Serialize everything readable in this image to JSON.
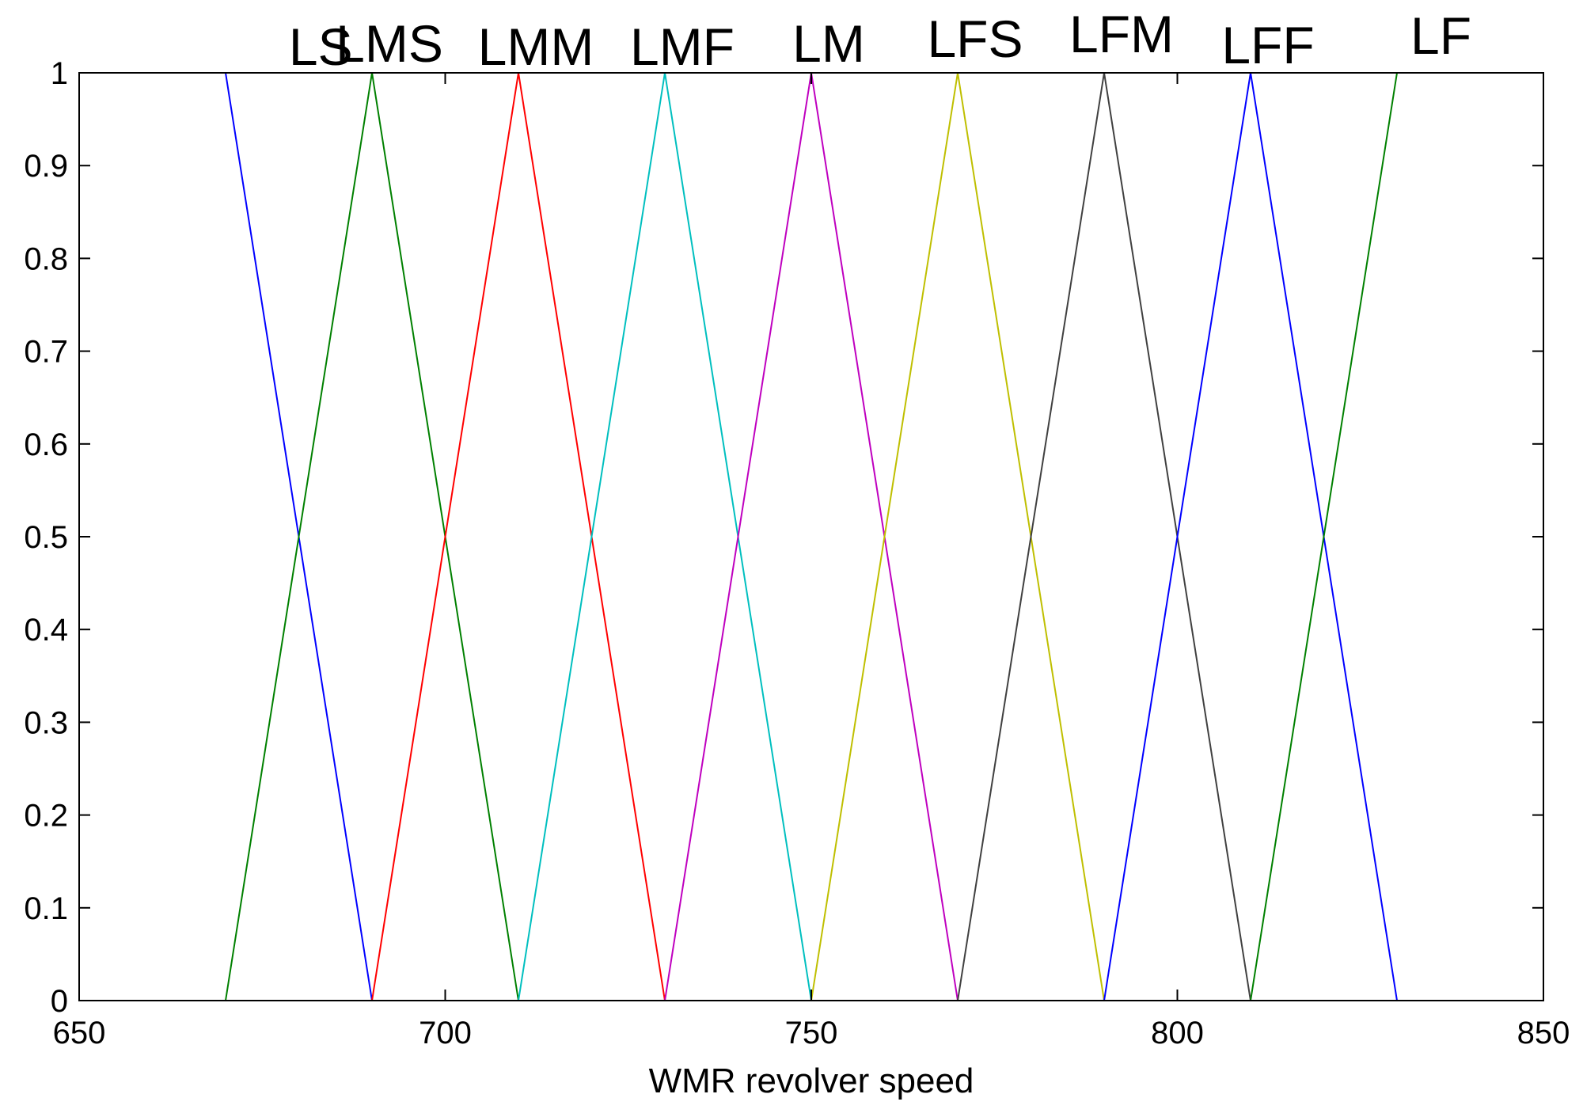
{
  "chart_data": {
    "type": "line",
    "title": "",
    "xlabel": "WMR revolver speed",
    "ylabel": "",
    "xlim": [
      650,
      850
    ],
    "ylim": [
      0,
      1
    ],
    "xticks": [
      650,
      700,
      750,
      800,
      850
    ],
    "xtick_labels": [
      "650",
      "700",
      "750",
      "800",
      "850"
    ],
    "yticks": [
      0,
      0.1,
      0.2,
      0.3,
      0.4,
      0.5,
      0.6,
      0.7,
      0.8,
      0.9,
      1
    ],
    "ytick_labels": [
      "0",
      "0.1",
      "0.2",
      "0.3",
      "0.4",
      "0.5",
      "0.6",
      "0.7",
      "0.8",
      "0.9",
      "1"
    ],
    "grid": false,
    "series": [
      {
        "name": "LS",
        "color": "#0000ff",
        "x": [
          650,
          670,
          690
        ],
        "y": [
          1,
          1,
          0
        ]
      },
      {
        "name": "LMS",
        "color": "#008000",
        "x": [
          670,
          690,
          710
        ],
        "y": [
          0,
          1,
          0
        ]
      },
      {
        "name": "LMM",
        "color": "#ff0000",
        "x": [
          690,
          710,
          730
        ],
        "y": [
          0,
          1,
          0
        ]
      },
      {
        "name": "LMF",
        "color": "#00bfbf",
        "x": [
          710,
          730,
          750
        ],
        "y": [
          0,
          1,
          0
        ]
      },
      {
        "name": "LM",
        "color": "#bf00bf",
        "x": [
          730,
          750,
          770
        ],
        "y": [
          0,
          1,
          0
        ]
      },
      {
        "name": "LFS",
        "color": "#bfbf00",
        "x": [
          750,
          770,
          790
        ],
        "y": [
          0,
          1,
          0
        ]
      },
      {
        "name": "LFM",
        "color": "#404040",
        "x": [
          770,
          790,
          810
        ],
        "y": [
          0,
          1,
          0
        ]
      },
      {
        "name": "LFF",
        "color": "#0000ff",
        "x": [
          790,
          810,
          830
        ],
        "y": [
          0,
          1,
          0
        ]
      },
      {
        "name": "LF",
        "color": "#008000",
        "x": [
          810,
          830,
          850
        ],
        "y": [
          0,
          1,
          1
        ]
      }
    ],
    "baselines": [
      {
        "color": "#008000",
        "x": [
          650,
          670
        ],
        "y": [
          0,
          0
        ]
      },
      {
        "color": "#0000ff",
        "x": [
          830,
          850
        ],
        "y": [
          0,
          0
        ]
      }
    ]
  }
}
